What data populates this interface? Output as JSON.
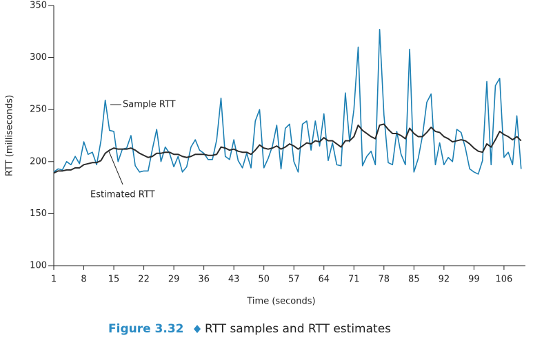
{
  "chart_data": {
    "type": "line",
    "x_label": "Time (seconds)",
    "y_label": "RTT (milliseconds)",
    "figure_label": "Figure 3.32",
    "caption": "RTT samples and RTT estimates",
    "x": [
      1,
      2,
      3,
      4,
      5,
      6,
      7,
      8,
      9,
      10,
      11,
      12,
      13,
      14,
      15,
      16,
      17,
      18,
      19,
      20,
      21,
      22,
      23,
      24,
      25,
      26,
      27,
      28,
      29,
      30,
      31,
      32,
      33,
      34,
      35,
      36,
      37,
      38,
      39,
      40,
      41,
      42,
      43,
      44,
      45,
      46,
      47,
      48,
      49,
      50,
      51,
      52,
      53,
      54,
      55,
      56,
      57,
      58,
      59,
      60,
      61,
      62,
      63,
      64,
      65,
      66,
      67,
      68,
      69,
      70,
      71,
      72,
      73,
      74,
      75,
      76,
      77,
      78,
      79,
      80,
      81,
      82,
      83,
      84,
      85,
      86,
      87,
      88,
      89,
      90,
      91,
      92,
      93,
      94,
      95,
      96,
      97,
      98,
      99,
      100,
      101,
      102,
      103,
      104,
      105,
      106,
      107,
      108,
      109,
      110
    ],
    "series": [
      {
        "name": "Sample RTT",
        "color": "#1b7fb3",
        "values": [
          190,
          193,
          192,
          200,
          197,
          205,
          198,
          219,
          207,
          209,
          197,
          220,
          259,
          230,
          229,
          200,
          212,
          213,
          225,
          196,
          190,
          191,
          191,
          212,
          231,
          200,
          214,
          208,
          195,
          205,
          190,
          195,
          214,
          221,
          211,
          208,
          202,
          202,
          221,
          261,
          205,
          202,
          221,
          201,
          194,
          208,
          194,
          239,
          250,
          194,
          203,
          215,
          235,
          193,
          232,
          236,
          200,
          190,
          236,
          239,
          211,
          239,
          215,
          246,
          201,
          218,
          197,
          196,
          266,
          219,
          250,
          310,
          196,
          205,
          210,
          197,
          327,
          245,
          199,
          197,
          229,
          207,
          197,
          308,
          190,
          203,
          225,
          257,
          265,
          197,
          218,
          197,
          204,
          200,
          231,
          228,
          213,
          193,
          190,
          188,
          201,
          277,
          197,
          273,
          280,
          204,
          209,
          197,
          244,
          193
        ]
      },
      {
        "name": "Estimated RTT",
        "color": "#2b2b2b",
        "values": [
          189,
          191,
          191,
          192,
          192,
          194,
          194,
          197,
          198,
          199,
          199,
          201,
          208,
          211,
          213,
          212,
          212,
          212,
          213,
          211,
          208,
          206,
          204,
          205,
          208,
          208,
          209,
          209,
          207,
          207,
          205,
          204,
          205,
          207,
          207,
          207,
          206,
          206,
          207,
          214,
          213,
          211,
          212,
          210,
          209,
          209,
          207,
          211,
          216,
          213,
          212,
          213,
          215,
          212,
          214,
          217,
          215,
          212,
          215,
          218,
          217,
          220,
          219,
          223,
          220,
          220,
          217,
          214,
          220,
          220,
          224,
          235,
          230,
          227,
          224,
          222,
          235,
          236,
          231,
          227,
          227,
          225,
          222,
          232,
          227,
          224,
          224,
          228,
          233,
          229,
          228,
          224,
          222,
          219,
          220,
          221,
          220,
          217,
          213,
          210,
          209,
          217,
          214,
          221,
          229,
          226,
          224,
          221,
          224,
          220
        ]
      }
    ],
    "xlim": [
      1,
      111
    ],
    "ylim": [
      100,
      350
    ],
    "xticks": [
      1,
      8,
      15,
      22,
      29,
      36,
      43,
      50,
      57,
      64,
      71,
      78,
      85,
      92,
      99,
      106
    ],
    "yticks": [
      100,
      150,
      200,
      250,
      300,
      350
    ]
  }
}
